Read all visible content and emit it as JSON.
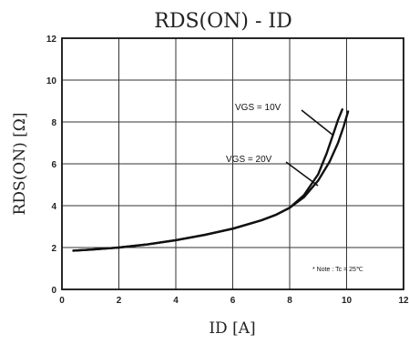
{
  "chart_data": {
    "type": "line",
    "title": "RDS(ON) - ID",
    "xlabel": "ID [A]",
    "ylabel": "RDS(ON) [Ω]",
    "xlim": [
      0,
      12
    ],
    "ylim": [
      0,
      12
    ],
    "xticks": [
      "0",
      "2",
      "4",
      "6",
      "8",
      "10",
      "12"
    ],
    "yticks": [
      "0",
      "2",
      "4",
      "6",
      "8",
      "10",
      "12"
    ],
    "grid": true,
    "series": [
      {
        "name": "VGS = 10V",
        "x": [
          0.4,
          1,
          2,
          3,
          4,
          5,
          6,
          7,
          7.5,
          8,
          8.5,
          9,
          9.3,
          9.5,
          9.7,
          9.85
        ],
        "y": [
          1.85,
          1.9,
          2.0,
          2.15,
          2.35,
          2.6,
          2.9,
          3.3,
          3.55,
          3.9,
          4.5,
          5.5,
          6.5,
          7.3,
          8.1,
          8.6
        ]
      },
      {
        "name": "VGS = 20V",
        "x": [
          0.4,
          1,
          2,
          3,
          4,
          5,
          6,
          7,
          7.5,
          8,
          8.5,
          9,
          9.4,
          9.7,
          9.9,
          10.05
        ],
        "y": [
          1.85,
          1.9,
          2.0,
          2.15,
          2.35,
          2.6,
          2.9,
          3.3,
          3.55,
          3.9,
          4.4,
          5.2,
          6.1,
          7.0,
          7.8,
          8.5
        ]
      }
    ],
    "annotations": [
      {
        "text": "VGS = 10V",
        "points_to": "VGS = 10V"
      },
      {
        "text": "VGS = 20V",
        "points_to": "VGS = 20V"
      }
    ],
    "note": "* Note : Tc = 25℃"
  }
}
